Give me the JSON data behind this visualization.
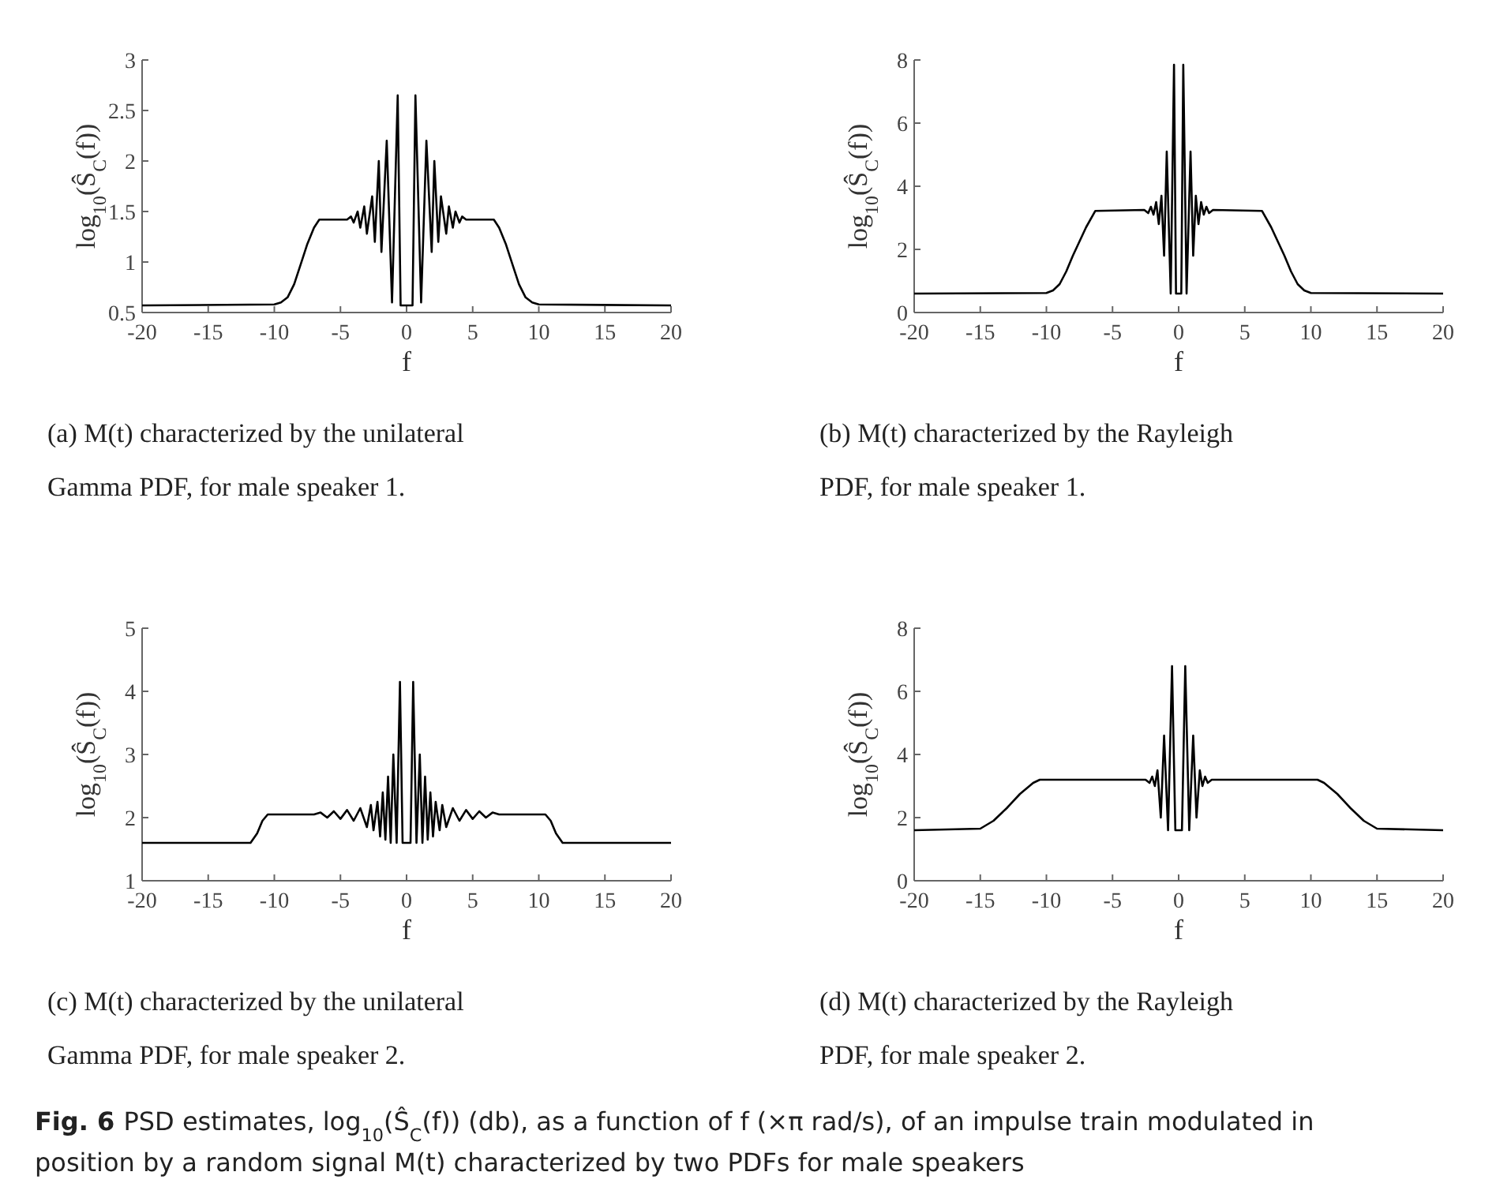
{
  "chart_data": [
    {
      "type": "line",
      "xlabel": "f",
      "ylabel": "log$_{10}$(Ŝ$_{C}$(f))",
      "xlim": [
        -20,
        20
      ],
      "xticks": [
        -20,
        -15,
        -10,
        -5,
        0,
        5,
        10,
        15,
        20
      ],
      "ylim": [
        0.5,
        3
      ],
      "yticks": [
        0.5,
        1,
        1.5,
        2,
        2.5,
        3
      ],
      "grid": false,
      "annotations": [
        "(a) M(t) characterized by the unilateral Gamma PDF, for male speaker 1."
      ],
      "series": [
        {
          "color": "#000000",
          "x": [
            -20,
            -10,
            -9.5,
            -9,
            -8.5,
            -8,
            -7.5,
            -7,
            -6.6,
            -4.5,
            -4.2,
            -4,
            -3.7,
            -3.5,
            -3.2,
            -3,
            -2.6,
            -2.4,
            -2.1,
            -1.9,
            -1.5,
            -1.1,
            -0.67,
            -0.45,
            0,
            0.45,
            0.67,
            1.1,
            1.5,
            1.9,
            2.1,
            2.4,
            2.6,
            3,
            3.2,
            3.5,
            3.7,
            4,
            4.2,
            4.5,
            6.6,
            7,
            7.5,
            8,
            8.5,
            9,
            9.5,
            10,
            20
          ],
          "values": [
            0.57,
            0.58,
            0.6,
            0.65,
            0.78,
            0.98,
            1.18,
            1.34,
            1.42,
            1.42,
            1.45,
            1.39,
            1.5,
            1.34,
            1.55,
            1.28,
            1.65,
            1.2,
            2,
            1.1,
            2.2,
            0.6,
            2.65,
            0.57,
            0.57,
            0.57,
            2.65,
            0.6,
            2.2,
            1.1,
            2,
            1.2,
            1.65,
            1.28,
            1.55,
            1.34,
            1.5,
            1.39,
            1.45,
            1.42,
            1.42,
            1.34,
            1.18,
            0.98,
            0.78,
            0.65,
            0.6,
            0.58,
            0.57
          ]
        }
      ]
    },
    {
      "type": "line",
      "xlabel": "f",
      "ylabel": "log$_{10}$(Ŝ$_{C}$(f))",
      "xlim": [
        -20,
        20
      ],
      "xticks": [
        -20,
        -15,
        -10,
        -5,
        0,
        5,
        10,
        15,
        20
      ],
      "ylim": [
        0,
        8
      ],
      "yticks": [
        0,
        2,
        4,
        6,
        8
      ],
      "grid": false,
      "annotations": [
        "(b) M(t) characterized by the Rayleigh PDF, for male speaker 1."
      ],
      "series": [
        {
          "color": "#000000",
          "x": [
            -20,
            -10,
            -9.5,
            -9,
            -8.5,
            -8,
            -7.5,
            -7,
            -6.3,
            -2.6,
            -2.3,
            -2.1,
            -1.9,
            -1.7,
            -1.5,
            -1.3,
            -1.1,
            -0.9,
            -0.6,
            -0.35,
            -0.2,
            0,
            0.2,
            0.35,
            0.6,
            0.9,
            1.1,
            1.3,
            1.5,
            1.7,
            1.9,
            2.1,
            2.3,
            2.6,
            6.3,
            7,
            7.5,
            8,
            8.5,
            9,
            9.5,
            10,
            20
          ],
          "values": [
            0.6,
            0.62,
            0.7,
            0.9,
            1.3,
            1.8,
            2.25,
            2.7,
            3.22,
            3.25,
            3.15,
            3.35,
            3.1,
            3.5,
            2.8,
            3.7,
            1.8,
            5.1,
            0.6,
            7.85,
            0.6,
            0.6,
            0.6,
            7.85,
            0.6,
            5.1,
            1.8,
            3.7,
            2.8,
            3.5,
            3.1,
            3.35,
            3.15,
            3.25,
            3.22,
            2.7,
            2.25,
            1.8,
            1.3,
            0.9,
            0.7,
            0.62,
            0.6
          ]
        }
      ]
    },
    {
      "type": "line",
      "xlabel": "f",
      "ylabel": "log$_{10}$(Ŝ$_{C}$(f))",
      "xlim": [
        -20,
        20
      ],
      "xticks": [
        -20,
        -15,
        -10,
        -5,
        0,
        5,
        10,
        15,
        20
      ],
      "ylim": [
        1,
        5
      ],
      "yticks": [
        1,
        2,
        3,
        4,
        5
      ],
      "grid": false,
      "annotations": [
        "(c) M(t) characterized by the unilateral Gamma PDF, for male speaker 2."
      ],
      "series": [
        {
          "color": "#000000",
          "x": [
            -20,
            -11.8,
            -11.3,
            -10.9,
            -10.5,
            -7,
            -6.5,
            -6,
            -5.5,
            -5,
            -4.5,
            -4,
            -3.5,
            -3,
            -2.7,
            -2.5,
            -2.2,
            -2,
            -1.8,
            -1.6,
            -1.4,
            -1.2,
            -1,
            -0.75,
            -0.5,
            -0.3,
            0,
            0.3,
            0.5,
            0.75,
            1,
            1.2,
            1.4,
            1.6,
            1.8,
            2,
            2.2,
            2.5,
            2.7,
            3,
            3.5,
            4,
            4.5,
            5,
            5.5,
            6,
            6.5,
            7,
            10.5,
            10.9,
            11.3,
            11.8,
            20
          ],
          "values": [
            1.6,
            1.6,
            1.75,
            1.95,
            2.05,
            2.05,
            2.08,
            2.0,
            2.1,
            1.98,
            2.12,
            1.95,
            2.15,
            1.85,
            2.2,
            1.8,
            2.25,
            1.7,
            2.4,
            1.65,
            2.65,
            1.6,
            3.0,
            1.6,
            4.15,
            1.6,
            1.6,
            1.6,
            4.15,
            1.6,
            3.0,
            1.6,
            2.65,
            1.65,
            2.4,
            1.7,
            2.25,
            1.8,
            2.2,
            1.85,
            2.15,
            1.95,
            2.12,
            1.98,
            2.1,
            2.0,
            2.08,
            2.05,
            2.05,
            1.95,
            1.75,
            1.6,
            1.6
          ]
        }
      ]
    },
    {
      "type": "line",
      "xlabel": "f",
      "ylabel": "log$_{10}$(Ŝ$_{C}$(f))",
      "xlim": [
        -20,
        20
      ],
      "xticks": [
        -20,
        -15,
        -10,
        -5,
        0,
        5,
        10,
        15,
        20
      ],
      "ylim": [
        0,
        8
      ],
      "yticks": [
        0,
        2,
        4,
        6,
        8
      ],
      "grid": false,
      "annotations": [
        "(d) M(t) characterized by the Rayleigh PDF, for male speaker 2."
      ],
      "series": [
        {
          "color": "#000000",
          "x": [
            -20,
            -15,
            -14,
            -13,
            -12,
            -11,
            -10.5,
            -2.5,
            -2.2,
            -2,
            -1.8,
            -1.6,
            -1.35,
            -1.1,
            -0.8,
            -0.5,
            -0.25,
            0,
            0.25,
            0.5,
            0.8,
            1.1,
            1.35,
            1.6,
            1.8,
            2,
            2.2,
            2.5,
            10.5,
            11,
            12,
            13,
            14,
            15,
            20
          ],
          "values": [
            1.6,
            1.65,
            1.9,
            2.3,
            2.75,
            3.1,
            3.2,
            3.2,
            3.1,
            3.3,
            3.0,
            3.5,
            2.0,
            4.6,
            1.6,
            6.8,
            1.6,
            1.6,
            1.6,
            6.8,
            1.6,
            4.6,
            2.0,
            3.5,
            3.0,
            3.3,
            3.1,
            3.2,
            3.2,
            3.1,
            2.75,
            2.3,
            1.9,
            1.65,
            1.6
          ]
        }
      ]
    },
    {
      "type": "other",
      "title": "Fig. 6",
      "annotations": [
        "PSD estimates, log$_{10}$(Ŝ$_{C}$(f)) (db), as a function of f (×π rad/s), of an impulse train modulated in position by a random signal M(t) characterized by two PDFs for male speakers"
      ]
    }
  ]
}
